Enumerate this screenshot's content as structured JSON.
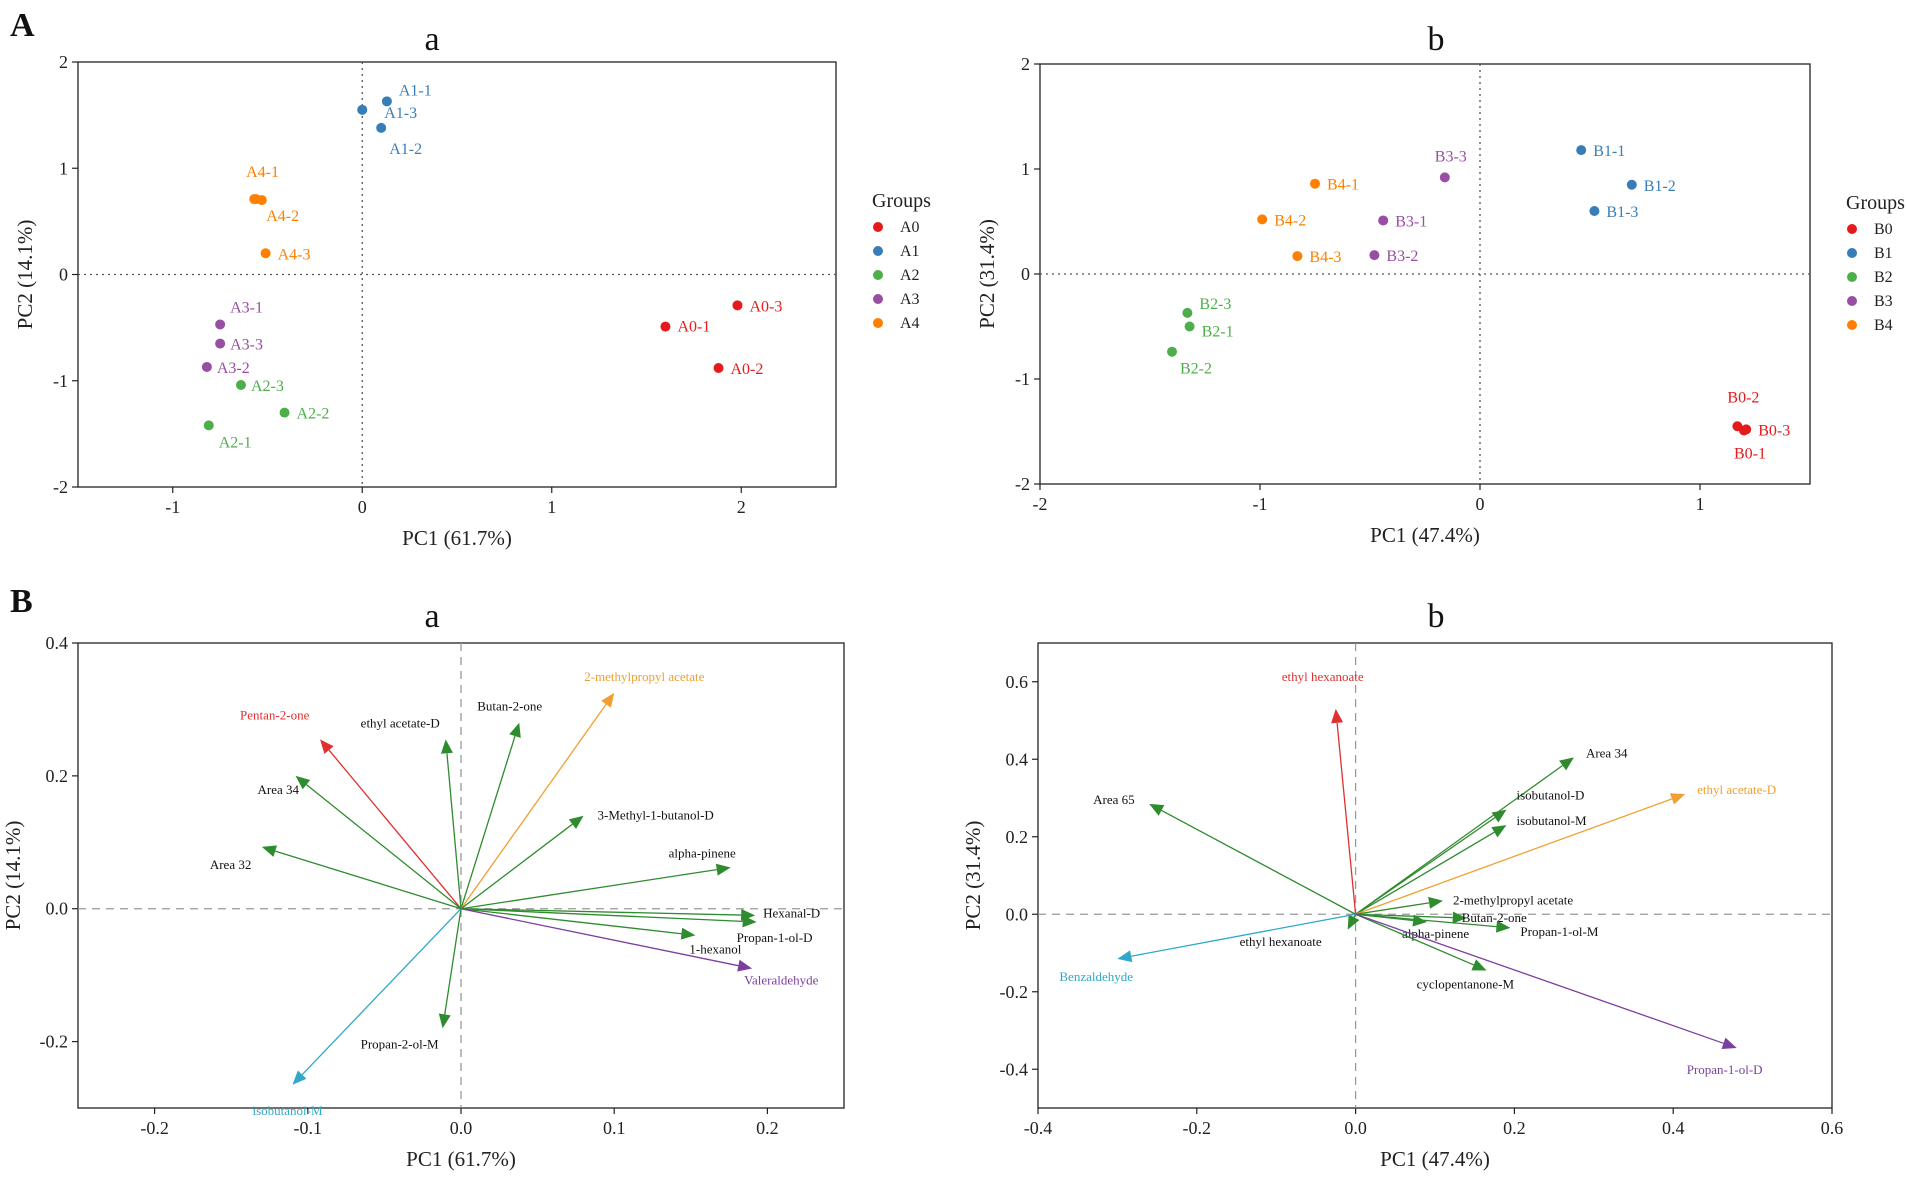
{
  "figure": {
    "panel_labels": [
      "A",
      "B"
    ]
  },
  "colors": {
    "A0": "#e41a1c",
    "A1": "#377eb8",
    "A2": "#4daf4a",
    "A3": "#984ea3",
    "A4": "#ff7f00",
    "B0": "#e41a1c",
    "B1": "#377eb8",
    "B2": "#4daf4a",
    "B3": "#984ea3",
    "B4": "#ff7f00",
    "green": "#2e8b2e",
    "red": "#e03030",
    "orange": "#f0a030",
    "purple": "#7b3fa0",
    "cyan": "#30a8c8"
  },
  "chart_data": [
    {
      "id": "Aa",
      "type": "scatter",
      "title": "a",
      "xlabel": "PC1 (61.7%)",
      "ylabel": "PC2 (14.1%)",
      "xlim": [
        -1.5,
        2.5
      ],
      "ylim": [
        -2,
        2
      ],
      "xticks": [
        -1,
        0,
        1,
        2
      ],
      "yticks": [
        -2,
        -1,
        0,
        1,
        2
      ],
      "legend": {
        "title": "Groups",
        "position": "right",
        "items": [
          "A0",
          "A1",
          "A2",
          "A3",
          "A4"
        ]
      },
      "points": [
        {
          "label": "A0-1",
          "group": "A0",
          "x": 1.6,
          "y": -0.49
        },
        {
          "label": "A0-2",
          "group": "A0",
          "x": 1.88,
          "y": -0.88
        },
        {
          "label": "A0-3",
          "group": "A0",
          "x": 1.98,
          "y": -0.29
        },
        {
          "label": "A1-1",
          "group": "A1",
          "x": 0.13,
          "y": 1.63
        },
        {
          "label": "A1-2",
          "group": "A1",
          "x": 0.1,
          "y": 1.38
        },
        {
          "label": "A1-3",
          "group": "A1",
          "x": 0.0,
          "y": 1.55
        },
        {
          "label": "A2-1",
          "group": "A2",
          "x": -0.81,
          "y": -1.42
        },
        {
          "label": "A2-2",
          "group": "A2",
          "x": -0.41,
          "y": -1.3
        },
        {
          "label": "A2-3",
          "group": "A2",
          "x": -0.64,
          "y": -1.04
        },
        {
          "label": "A3-1",
          "group": "A3",
          "x": -0.75,
          "y": -0.47
        },
        {
          "label": "A3-2",
          "group": "A3",
          "x": -0.82,
          "y": -0.87
        },
        {
          "label": "A3-3",
          "group": "A3",
          "x": -0.75,
          "y": -0.65
        },
        {
          "label": "A4-1",
          "group": "A4",
          "x": -0.56,
          "y": 0.71
        },
        {
          "label": "A4-1",
          "group": "A4",
          "x": -0.53,
          "y": 0.7
        },
        {
          "label": "A4-2",
          "group": "A4",
          "x": -0.57,
          "y": 0.71
        },
        {
          "label": "A4-3",
          "group": "A4",
          "x": -0.51,
          "y": 0.2
        }
      ],
      "label_offsets_note": "labels placed beside points"
    },
    {
      "id": "Ab",
      "type": "scatter",
      "title": "b",
      "xlabel": "PC1 (47.4%)",
      "ylabel": "PC2 (31.4%)",
      "xlim": [
        -2,
        1.5
      ],
      "ylim": [
        -2,
        2
      ],
      "xticks": [
        -2,
        -1,
        0,
        1
      ],
      "yticks": [
        -2,
        -1,
        0,
        1,
        2
      ],
      "legend": {
        "title": "Groups",
        "position": "right",
        "items": [
          "B0",
          "B1",
          "B2",
          "B3",
          "B4"
        ]
      },
      "points": [
        {
          "label": "B0-1",
          "group": "B0",
          "x": 1.2,
          "y": -1.49
        },
        {
          "label": "B0-2",
          "group": "B0",
          "x": 1.17,
          "y": -1.45
        },
        {
          "label": "B0-3",
          "group": "B0",
          "x": 1.21,
          "y": -1.48
        },
        {
          "label": "B1-1",
          "group": "B1",
          "x": 0.46,
          "y": 1.18
        },
        {
          "label": "B1-2",
          "group": "B1",
          "x": 0.69,
          "y": 0.85
        },
        {
          "label": "B1-3",
          "group": "B1",
          "x": 0.52,
          "y": 0.6
        },
        {
          "label": "B2-1",
          "group": "B2",
          "x": -1.32,
          "y": -0.5
        },
        {
          "label": "B2-2",
          "group": "B2",
          "x": -1.4,
          "y": -0.74
        },
        {
          "label": "B2-3",
          "group": "B2",
          "x": -1.33,
          "y": -0.37
        },
        {
          "label": "B3-1",
          "group": "B3",
          "x": -0.44,
          "y": 0.51
        },
        {
          "label": "B3-2",
          "group": "B3",
          "x": -0.48,
          "y": 0.18
        },
        {
          "label": "B3-3",
          "group": "B3",
          "x": -0.16,
          "y": 0.92
        },
        {
          "label": "B4-1",
          "group": "B4",
          "x": -0.75,
          "y": 0.86
        },
        {
          "label": "B4-2",
          "group": "B4",
          "x": -0.99,
          "y": 0.52
        },
        {
          "label": "B4-3",
          "group": "B4",
          "x": -0.83,
          "y": 0.17
        }
      ]
    },
    {
      "id": "Ba",
      "type": "biplot",
      "title": "a",
      "xlabel": "PC1 (61.7%)",
      "ylabel": "PC2 (14.1%)",
      "xlim": [
        -0.25,
        0.25
      ],
      "ylim": [
        -0.3,
        0.4
      ],
      "xticks": [
        -0.2,
        -0.1,
        0.0,
        0.1,
        0.2
      ],
      "yticks": [
        -0.2,
        0.0,
        0.2,
        0.4
      ],
      "vectors": [
        {
          "label": "Pentan-2-one",
          "x": -0.092,
          "y": 0.255,
          "color": "red"
        },
        {
          "label": "ethyl acetate-D",
          "x": -0.01,
          "y": 0.255,
          "color": "green"
        },
        {
          "label": "Butan-2-one",
          "x": 0.038,
          "y": 0.28,
          "color": "green"
        },
        {
          "label": "2-methylpropyl acetate",
          "x": 0.1,
          "y": 0.325,
          "color": "orange"
        },
        {
          "label": "Area 34",
          "x": -0.108,
          "y": 0.2,
          "color": "green"
        },
        {
          "label": "3-Methyl-1-butanol-D",
          "x": 0.08,
          "y": 0.14,
          "color": "green"
        },
        {
          "label": "alpha-pinene",
          "x": 0.176,
          "y": 0.062,
          "color": "green"
        },
        {
          "label": "Area 32",
          "x": -0.13,
          "y": 0.093,
          "color": "green"
        },
        {
          "label": "Hexanal-D",
          "x": 0.192,
          "y": -0.01,
          "color": "green"
        },
        {
          "label": "Propan-1-ol-D",
          "x": 0.193,
          "y": -0.02,
          "color": "green"
        },
        {
          "label": "1-hexanol",
          "x": 0.153,
          "y": -0.04,
          "color": "green"
        },
        {
          "label": "Valeraldehyde",
          "x": 0.19,
          "y": -0.09,
          "color": "purple"
        },
        {
          "label": "Propan-2-ol-M",
          "x": -0.012,
          "y": -0.18,
          "color": "green"
        },
        {
          "label": "isobutanol-M",
          "x": -0.11,
          "y": -0.265,
          "color": "cyan"
        }
      ]
    },
    {
      "id": "Bb",
      "type": "biplot",
      "title": "b",
      "xlabel": "PC1 (47.4%)",
      "ylabel": "PC2 (31.4%)",
      "xlim": [
        -0.4,
        0.6
      ],
      "ylim": [
        -0.5,
        0.7
      ],
      "xticks": [
        -0.4,
        -0.2,
        0.0,
        0.2,
        0.4,
        0.6
      ],
      "yticks": [
        -0.4,
        -0.2,
        0.0,
        0.2,
        0.4,
        0.6
      ],
      "vectors": [
        {
          "label": "ethyl hexanoate",
          "x": -0.025,
          "y": 0.53,
          "color": "red"
        },
        {
          "label": "Area 65",
          "x": -0.26,
          "y": 0.285,
          "color": "green"
        },
        {
          "label": "Area 34",
          "x": 0.275,
          "y": 0.405,
          "color": "green"
        },
        {
          "label": "isobutanol-D",
          "x": 0.19,
          "y": 0.27,
          "color": "green"
        },
        {
          "label": "isobutanol-M",
          "x": 0.19,
          "y": 0.23,
          "color": "green"
        },
        {
          "label": "ethyl acetate-D",
          "x": 0.415,
          "y": 0.31,
          "color": "orange"
        },
        {
          "label": "2-methylpropyl acetate",
          "x": 0.11,
          "y": 0.035,
          "color": "green"
        },
        {
          "label": "Butan-2-one",
          "x": 0.14,
          "y": -0.01,
          "color": "green"
        },
        {
          "label": "Propan-1-ol-M",
          "x": 0.195,
          "y": -0.035,
          "color": "green"
        },
        {
          "label": "alpha-pinene",
          "x": 0.09,
          "y": -0.02,
          "color": "green"
        },
        {
          "label": "ethyl hexanoate",
          "x": -0.01,
          "y": -0.04,
          "color": "green"
        },
        {
          "label": "cyclopentanone-M",
          "x": 0.165,
          "y": -0.145,
          "color": "green"
        },
        {
          "label": "Benzaldehyde",
          "x": -0.3,
          "y": -0.115,
          "color": "cyan"
        },
        {
          "label": "Propan-1-ol-D",
          "x": 0.48,
          "y": -0.345,
          "color": "purple"
        }
      ]
    }
  ]
}
